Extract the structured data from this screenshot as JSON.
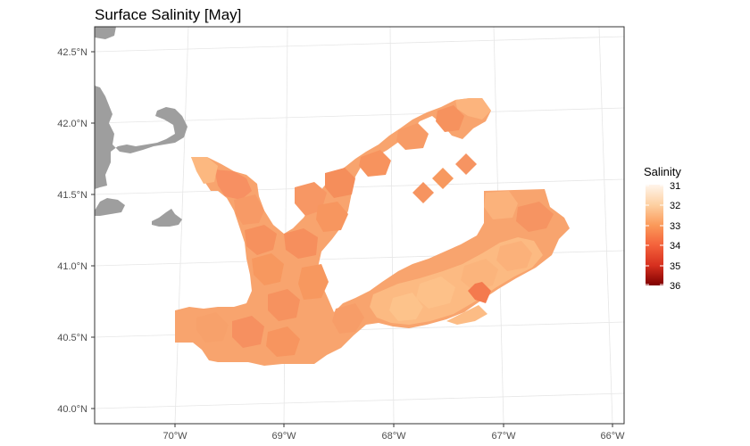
{
  "chart_data": {
    "type": "map",
    "title": "Surface Salinity [May]",
    "x_ticks": [
      {
        "value": -70,
        "label": "70°W"
      },
      {
        "value": -69,
        "label": "69°W"
      },
      {
        "value": -68,
        "label": "68°W"
      },
      {
        "value": -67,
        "label": "67°W"
      },
      {
        "value": -66,
        "label": "66°W"
      }
    ],
    "y_ticks": [
      {
        "value": 40.0,
        "label": "40.0°N"
      },
      {
        "value": 40.5,
        "label": "40.5°N"
      },
      {
        "value": 41.0,
        "label": "41.0°N"
      },
      {
        "value": 41.5,
        "label": "41.5°N"
      },
      {
        "value": 42.0,
        "label": "42.0°N"
      },
      {
        "value": 42.5,
        "label": "42.5°N"
      }
    ],
    "xlim": [
      -70.75,
      -65.9
    ],
    "ylim": [
      39.95,
      42.65
    ],
    "legend": {
      "title": "Salinity",
      "position": "right",
      "min": 31,
      "max": 36,
      "breaks": [
        31,
        32,
        33,
        34,
        35,
        36
      ],
      "colors": [
        "#fff5eb",
        "#fdd49e",
        "#fdae6b",
        "#f16913",
        "#d94801",
        "#a50f15",
        "#67000d"
      ]
    },
    "land_color": "#9e9e9e",
    "grid": true
  }
}
